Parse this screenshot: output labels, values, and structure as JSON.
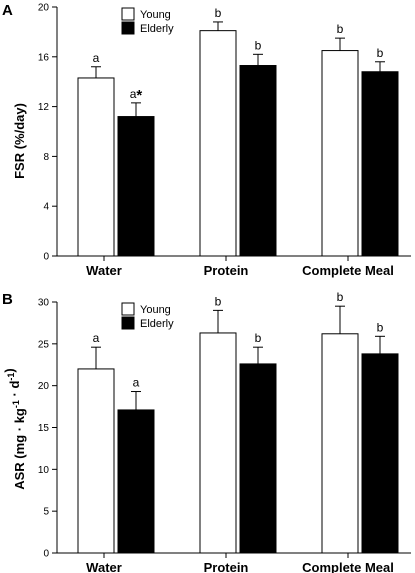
{
  "chart_data": [
    {
      "type": "bar",
      "panel_label": "A",
      "ylabel": "FSR (%/day)",
      "ylim": [
        0,
        20
      ],
      "yticks": [
        0,
        4,
        8,
        12,
        16,
        20
      ],
      "categories": [
        "Water",
        "Protein",
        "Complete Meal"
      ],
      "legend": "top-center",
      "grid": false,
      "series": [
        {
          "name": "Young",
          "fill": "#ffffff",
          "values": [
            14.3,
            18.1,
            16.5
          ],
          "errors": [
            0.9,
            0.7,
            1.0
          ],
          "labels": [
            "a",
            "b",
            "b"
          ]
        },
        {
          "name": "Elderly",
          "fill": "#000000",
          "values": [
            11.2,
            15.3,
            14.8
          ],
          "errors": [
            1.1,
            0.9,
            0.8
          ],
          "labels": [
            "a*",
            "b",
            "b"
          ]
        }
      ]
    },
    {
      "type": "bar",
      "panel_label": "B",
      "ylabel": "ASR (mg · kg-1 · d-1)",
      "ylim": [
        0,
        30
      ],
      "yticks": [
        0,
        5,
        10,
        15,
        20,
        25,
        30
      ],
      "categories": [
        "Water",
        "Protein",
        "Complete Meal"
      ],
      "legend": "top-center",
      "grid": false,
      "series": [
        {
          "name": "Young",
          "fill": "#ffffff",
          "values": [
            22.0,
            26.3,
            26.2
          ],
          "errors": [
            2.6,
            2.7,
            3.3
          ],
          "labels": [
            "a",
            "b",
            "b"
          ]
        },
        {
          "name": "Elderly",
          "fill": "#000000",
          "values": [
            17.1,
            22.6,
            23.8
          ],
          "errors": [
            2.2,
            2.0,
            2.1
          ],
          "labels": [
            "a",
            "b",
            "b"
          ]
        }
      ]
    }
  ]
}
